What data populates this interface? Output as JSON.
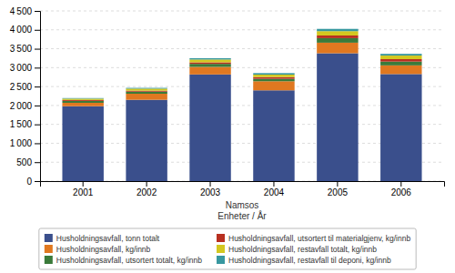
{
  "chart_data": {
    "type": "bar",
    "stacked": true,
    "categories": [
      "2001",
      "2002",
      "2003",
      "2004",
      "2005",
      "2006"
    ],
    "series": [
      {
        "name": "Husholdningsavfall, tonn totalt",
        "color": "#3a4f8c",
        "values": [
          1980,
          2150,
          2820,
          2400,
          3380,
          2830
        ]
      },
      {
        "name": "Husholdningsavfall, kg/innb",
        "color": "#e07820",
        "values": [
          90,
          160,
          200,
          240,
          280,
          230
        ]
      },
      {
        "name": "Husholdningsavfall, utsortert totalt, kg/innb",
        "color": "#3a7a3a",
        "values": [
          50,
          55,
          80,
          65,
          120,
          100
        ]
      },
      {
        "name": "Husholdningsavfall, utsortert til materialgjenv, kg/innb",
        "color": "#b83020",
        "values": [
          25,
          25,
          40,
          45,
          70,
          65
        ]
      },
      {
        "name": "Husholdningsavfall, restavfall totalt, kg/innb",
        "color": "#d4c820",
        "values": [
          35,
          55,
          75,
          65,
          115,
          95
        ]
      },
      {
        "name": "Husholdningsavfall, restavfall til deponi, kg/innb",
        "color": "#3898a0",
        "values": [
          15,
          20,
          35,
          40,
          60,
          45
        ]
      }
    ],
    "xlabel": "Namsos\nEnheter / År",
    "ylim": [
      0,
      4500
    ],
    "yticks": [
      0,
      500,
      {
        "value": 1000,
        "label": "1 000"
      },
      {
        "value": 1500,
        "label": "1 500"
      },
      {
        "value": 2000,
        "label": "2 000"
      },
      {
        "value": 2500,
        "label": "2 500"
      },
      {
        "value": 3000,
        "label": "3 000"
      },
      {
        "value": 3500,
        "label": "3 500"
      },
      {
        "value": 4000,
        "label": "4 000"
      },
      {
        "value": 4500,
        "label": "4 500"
      }
    ],
    "grid": true,
    "legend": "bottom"
  }
}
